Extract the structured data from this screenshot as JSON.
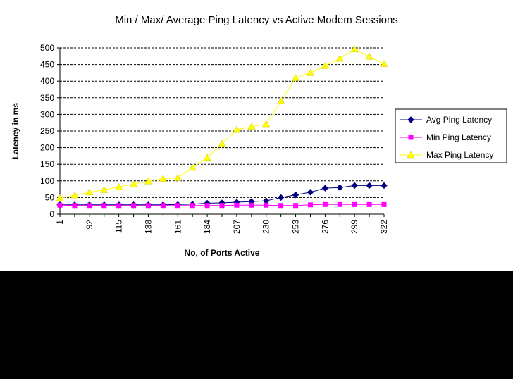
{
  "chart_data": {
    "type": "line",
    "title": "Min / Max/ Average Ping Latency vs Active Modem Sessions",
    "xlabel": "No, of Ports Active",
    "ylabel": "Latency in ms",
    "ylim": [
      0,
      500
    ],
    "yticks": [
      0,
      50,
      100,
      150,
      200,
      250,
      300,
      350,
      400,
      450,
      500
    ],
    "x_tick_labels": [
      "1",
      "92",
      "115",
      "138",
      "161",
      "184",
      "207",
      "230",
      "253",
      "276",
      "299",
      "322"
    ],
    "x_tick_positions": [
      0,
      2,
      4,
      6,
      8,
      10,
      12,
      14,
      16,
      18,
      20,
      22
    ],
    "point_count": 23,
    "grid": true,
    "legend_position": "right",
    "series": [
      {
        "name": "Avg Ping Latency",
        "color": "#000080",
        "marker": "diamond",
        "values": [
          28,
          28,
          28,
          28,
          28,
          28,
          28,
          28,
          29,
          30,
          33,
          34,
          36,
          38,
          40,
          50,
          58,
          66,
          78,
          80,
          86,
          86,
          86
        ]
      },
      {
        "name": "Min Ping Latency",
        "color": "#FF00FF",
        "marker": "square",
        "values": [
          27,
          26,
          26,
          26,
          26,
          26,
          26,
          26,
          26,
          26,
          26,
          26,
          27,
          27,
          27,
          26,
          26,
          28,
          29,
          29,
          29,
          29,
          29
        ]
      },
      {
        "name": "Max Ping Latency",
        "color": "#FFFF00",
        "marker": "triangle",
        "values": [
          48,
          57,
          66,
          73,
          82,
          90,
          99,
          107,
          109,
          140,
          170,
          212,
          254,
          263,
          271,
          340,
          410,
          425,
          446,
          468,
          496,
          474,
          452
        ]
      }
    ]
  }
}
